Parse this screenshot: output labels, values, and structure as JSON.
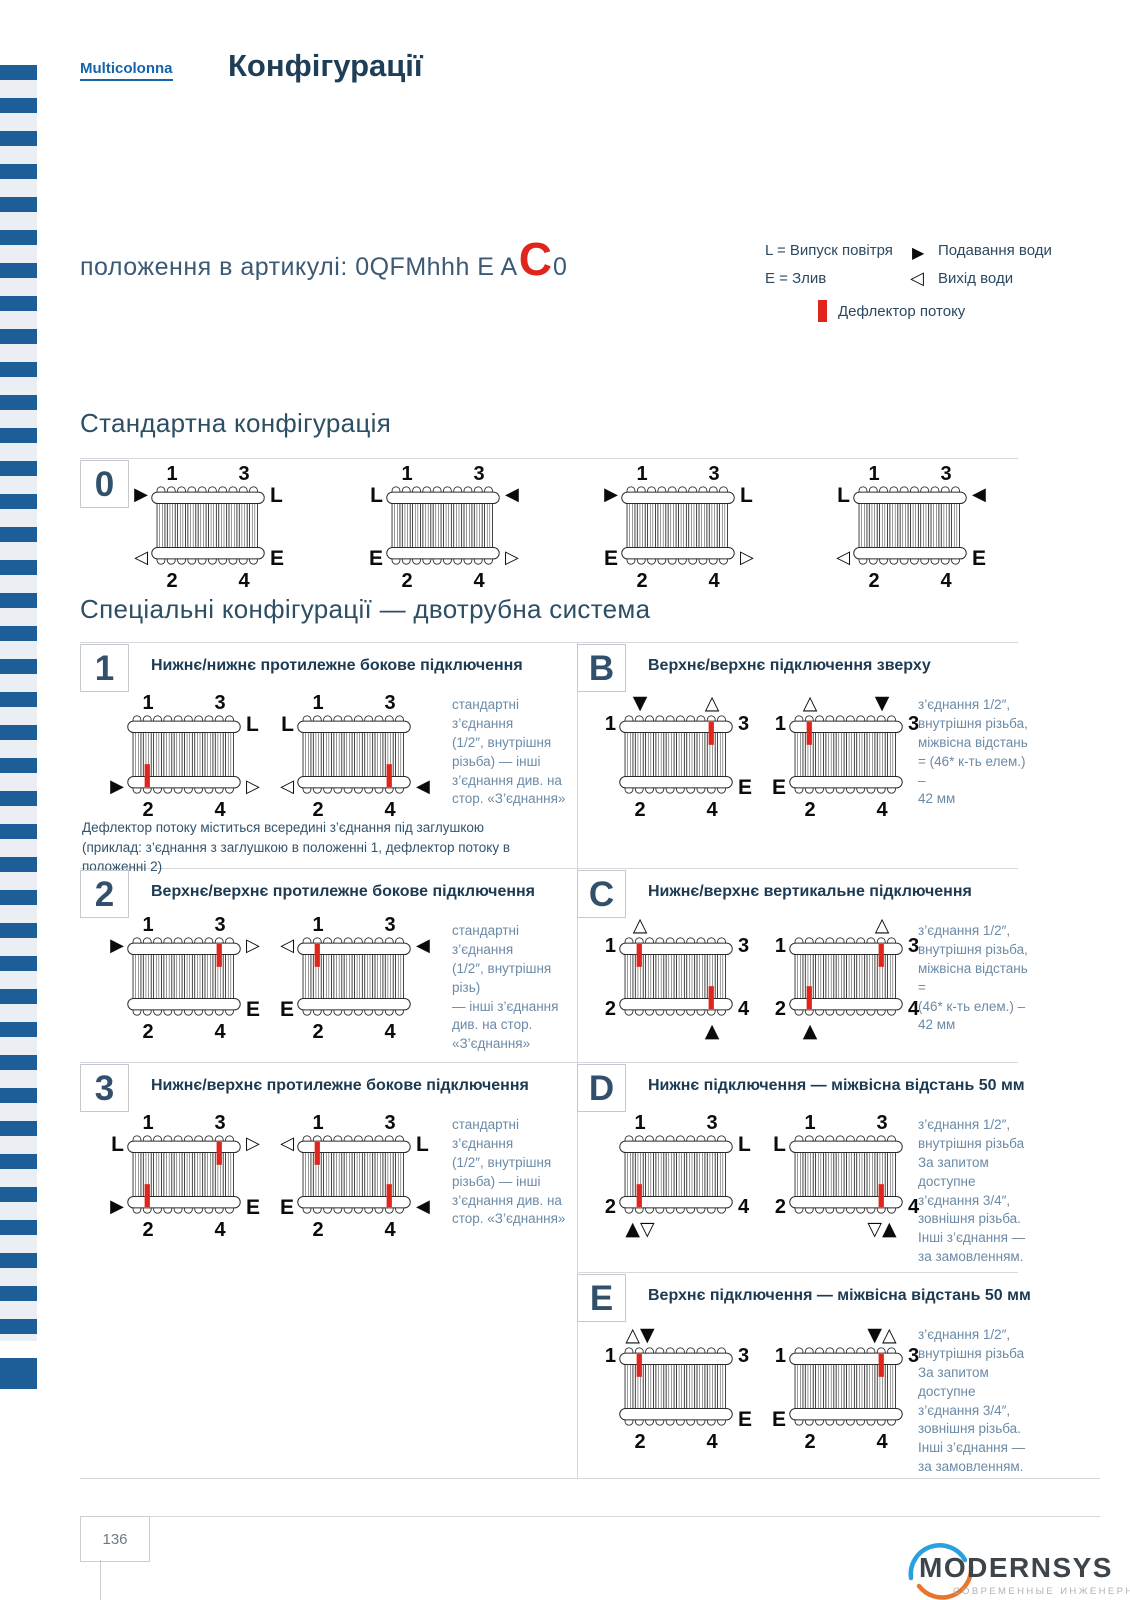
{
  "colors": {
    "accent_red": "#e0251d",
    "stripe_blue": "#1d5e99",
    "navy": "#1e3d57"
  },
  "header": {
    "brand": "Multicolonna",
    "title": "Конфігурації"
  },
  "article": {
    "prefix": "положення в артикулі: 0QFMhhh E A",
    "highlight": "C",
    "suffix": "0"
  },
  "legend": {
    "air": "L = Випуск повітря",
    "drain": "E = Злив",
    "supply_icon": "▶",
    "supply": "Подавання води",
    "outlet_icon": "◁",
    "outlet": "Вихід води",
    "deflector": "Дефлектор потоку"
  },
  "standard": {
    "heading": "Стандартна конфігурація",
    "label": "0",
    "diagrams": [
      {
        "al": "1",
        "ar": "3",
        "tl": "▶",
        "tr": "L",
        "bl": "◁",
        "br": "E",
        "ul": "2",
        "ur": "4",
        "defl": []
      },
      {
        "al": "1",
        "ar": "3",
        "tl": "L",
        "tr": "◀",
        "bl": "E",
        "br": "▷",
        "ul": "2",
        "ur": "4",
        "defl": []
      },
      {
        "al": "1",
        "ar": "3",
        "tl": "▶",
        "tr": "L",
        "bl": "E",
        "br": "▷",
        "ul": "2",
        "ur": "4",
        "defl": []
      },
      {
        "al": "1",
        "ar": "3",
        "tl": "L",
        "tr": "◀",
        "bl": "◁",
        "br": "E",
        "ul": "2",
        "ur": "4",
        "defl": []
      }
    ]
  },
  "special": {
    "heading": "Спеціальні конфігурації — двотрубна система",
    "rows": [
      {
        "label": "1",
        "title": "Нижнє/нижнє протилежне бокове підключення",
        "note": "стандартні з’єднання\n(1/2″, внутрішня\nрізьба) — інші\nз’єднання див. на\nстор. «З’єднання»",
        "footnote": "Дефлектор потоку міститься всередині з’єднання під заглушкою\n(приклад: з’єднання з заглушкою в положенні 1, дефлектор потоку в положенні 2)",
        "diagrams": [
          {
            "al": "1",
            "ar": "3",
            "tl": "",
            "tr": "L",
            "bl": "▶",
            "br": "▷",
            "ul": "2",
            "ur": "4",
            "defl": [
              "bl"
            ]
          },
          {
            "al": "1",
            "ar": "3",
            "tl": "L",
            "tr": "",
            "bl": "◁",
            "br": "◀",
            "ul": "2",
            "ur": "4",
            "defl": [
              "br"
            ]
          }
        ]
      },
      {
        "label": "B",
        "title": "Верхнє/верхнє підключення зверху",
        "note": "з’єднання 1/2″,\nвнутрішня різьба,\nміжвісна відстань\n= (46* к-ть елем.) –\n42 мм",
        "footnote": "",
        "diagrams": [
          {
            "al": "▼",
            "ar": "△",
            "tl": "1",
            "tr": "3",
            "bl": "",
            "br": "E",
            "ul": "2",
            "ur": "4",
            "defl": [
              "tr"
            ]
          },
          {
            "al": "△",
            "ar": "▼",
            "tl": "1",
            "tr": "3",
            "bl": "E",
            "br": "",
            "ul": "2",
            "ur": "4",
            "defl": [
              "tl"
            ]
          }
        ]
      },
      {
        "label": "2",
        "title": "Верхнє/верхнє протилежне бокове підключення",
        "note": "стандартні з’єднання\n(1/2″, внутрішня різь)\n— інші з’єднання\nдив. на стор.\n«З’єднання»",
        "footnote": "",
        "diagrams": [
          {
            "al": "1",
            "ar": "3",
            "tl": "▶",
            "tr": "▷",
            "bl": "",
            "br": "E",
            "ul": "2",
            "ur": "4",
            "defl": [
              "tr"
            ]
          },
          {
            "al": "1",
            "ar": "3",
            "tl": "◁",
            "tr": "◀",
            "bl": "E",
            "br": "",
            "ul": "2",
            "ur": "4",
            "defl": [
              "tl"
            ]
          }
        ]
      },
      {
        "label": "C",
        "title": "Нижнє/верхнє вертикальне підключення",
        "note": "з’єднання 1/2″,\nвнутрішня різьба,\nміжвісна відстань =\n(46* к-ть елем.) –\n42 мм",
        "footnote": "",
        "diagrams": [
          {
            "al": "△",
            "ar": "",
            "tl": "1",
            "tr": "3",
            "bl": "2",
            "br": "4",
            "ul": "",
            "ur": "▲",
            "defl": [
              "tl",
              "br"
            ]
          },
          {
            "al": "",
            "ar": "△",
            "tl": "1",
            "tr": "3",
            "bl": "2",
            "br": "4",
            "ul": "▲",
            "ur": "",
            "defl": [
              "tr",
              "bl"
            ]
          }
        ]
      },
      {
        "label": "3",
        "title": "Нижнє/верхнє протилежне бокове підключення",
        "note": "стандартні з’єднання\n(1/2″, внутрішня\nрізьба) — інші\nз’єднання див. на\nстор. «З’єднання»",
        "footnote": "",
        "diagrams": [
          {
            "al": "1",
            "ar": "3",
            "tl": "L",
            "tr": "▷",
            "bl": "▶",
            "br": "E",
            "ul": "2",
            "ur": "4",
            "defl": [
              "tr",
              "bl"
            ]
          },
          {
            "al": "1",
            "ar": "3",
            "tl": "◁",
            "tr": "L",
            "bl": "E",
            "br": "◀",
            "ul": "2",
            "ur": "4",
            "defl": [
              "tl",
              "br"
            ]
          }
        ]
      },
      {
        "label": "D",
        "title": "Нижнє підключення — міжвісна відстань 50 мм",
        "note": "з’єднання 1/2″,\nвнутрішня різьба\nЗа запитом доступне\nз’єднання 3/4″,\nзовнішня різьба.\nІнші з’єднання —\nза замовленням.",
        "footnote": "",
        "diagrams": [
          {
            "al": "1",
            "ar": "3",
            "tl": "",
            "tr": "L",
            "bl": "2",
            "br": "4",
            "ul": "▲▽",
            "ur": "",
            "defl": [
              "bl"
            ]
          },
          {
            "al": "1",
            "ar": "3",
            "tl": "L",
            "tr": "",
            "bl": "2",
            "br": "4",
            "ul": "",
            "ur": "▽▲",
            "defl": [
              "br"
            ]
          }
        ]
      },
      {
        "label": "E",
        "title": "Верхнє підключення — міжвісна відстань 50 мм",
        "note": "з’єднання 1/2″,\nвнутрішня різьба\nЗа запитом доступне\nз’єднання 3/4″,\nзовнішня різьба.\nІнші з’єднання —\nза замовленням.",
        "footnote": "",
        "diagrams": [
          {
            "al": "△▼",
            "ar": "",
            "tl": "1",
            "tr": "3",
            "bl": "",
            "br": "E",
            "ul": "2",
            "ur": "4",
            "defl": [
              "tl"
            ]
          },
          {
            "al": "",
            "ar": "▼△",
            "tl": "1",
            "tr": "3",
            "bl": "E",
            "br": "",
            "ul": "2",
            "ur": "4",
            "defl": [
              "tr"
            ]
          }
        ]
      }
    ]
  },
  "footer": {
    "page_number": "136",
    "logo": "MODERNSYS",
    "logo_sub": "СОВРЕМЕННЫЕ ИНЖЕНЕРНЫЕ СИСТЕМЫ"
  }
}
